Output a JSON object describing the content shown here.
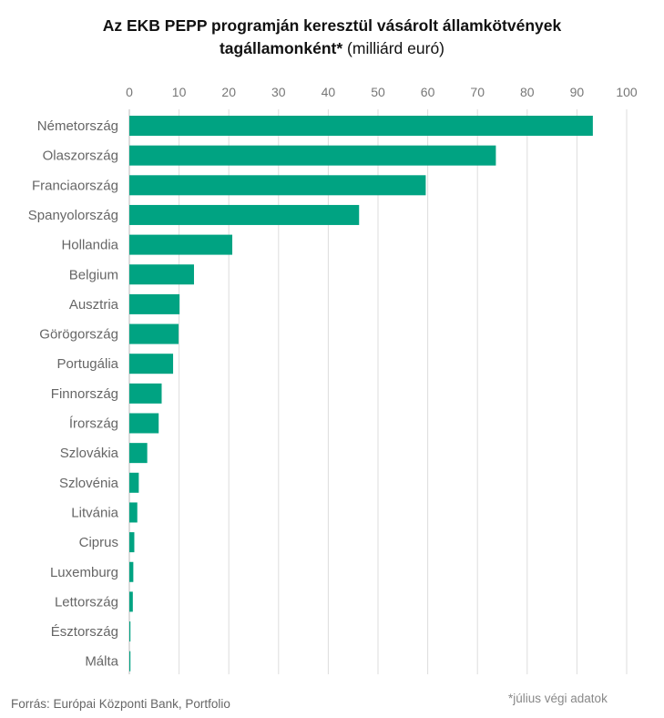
{
  "title": {
    "line1": "Az EKB PEPP programján keresztül vásárolt államkötvények",
    "line2_bold": "tagállamonként*",
    "line2_rest": " (milliárd euró)"
  },
  "chart_data": {
    "type": "bar",
    "orientation": "horizontal",
    "categories": [
      "Németország",
      "Olaszország",
      "Franciaország",
      "Spanyolország",
      "Hollandia",
      "Belgium",
      "Ausztria",
      "Görögország",
      "Portugália",
      "Finnország",
      "Írország",
      "Szlovákia",
      "Szlovénia",
      "Litvánia",
      "Ciprus",
      "Luxemburg",
      "Lettország",
      "Észtország",
      "Málta"
    ],
    "values": [
      93.2,
      73.7,
      59.6,
      46.2,
      20.7,
      13.0,
      10.1,
      9.9,
      8.8,
      6.5,
      5.9,
      3.6,
      1.9,
      1.6,
      1.0,
      0.8,
      0.7,
      0.2,
      0.2
    ],
    "xlim": [
      0,
      100
    ],
    "xticks": [
      0,
      10,
      20,
      30,
      40,
      50,
      60,
      70,
      80,
      90,
      100
    ],
    "xaxis_position": "top",
    "grid": true,
    "bar_color": "#00a382"
  },
  "footer": {
    "source": "Forrás: Európai Központi Bank, Portfolio",
    "note": "*július végi adatok"
  }
}
